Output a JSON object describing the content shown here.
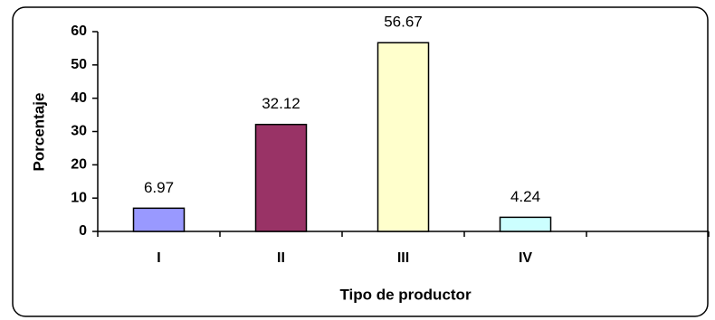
{
  "chart_data": {
    "type": "bar",
    "categories": [
      "I",
      "II",
      "III",
      "IV",
      null
    ],
    "values": [
      6.97,
      32.12,
      56.67,
      4.24,
      null
    ],
    "colors": [
      "#9999ff",
      "#993366",
      "#ffffcc",
      "#ccffff"
    ],
    "x_label": "Tipo de productor",
    "y_label": "Porcentaje",
    "ylim": [
      0,
      60
    ],
    "yticks": [
      0,
      10,
      20,
      30,
      40,
      50,
      60
    ],
    "grid": false
  }
}
